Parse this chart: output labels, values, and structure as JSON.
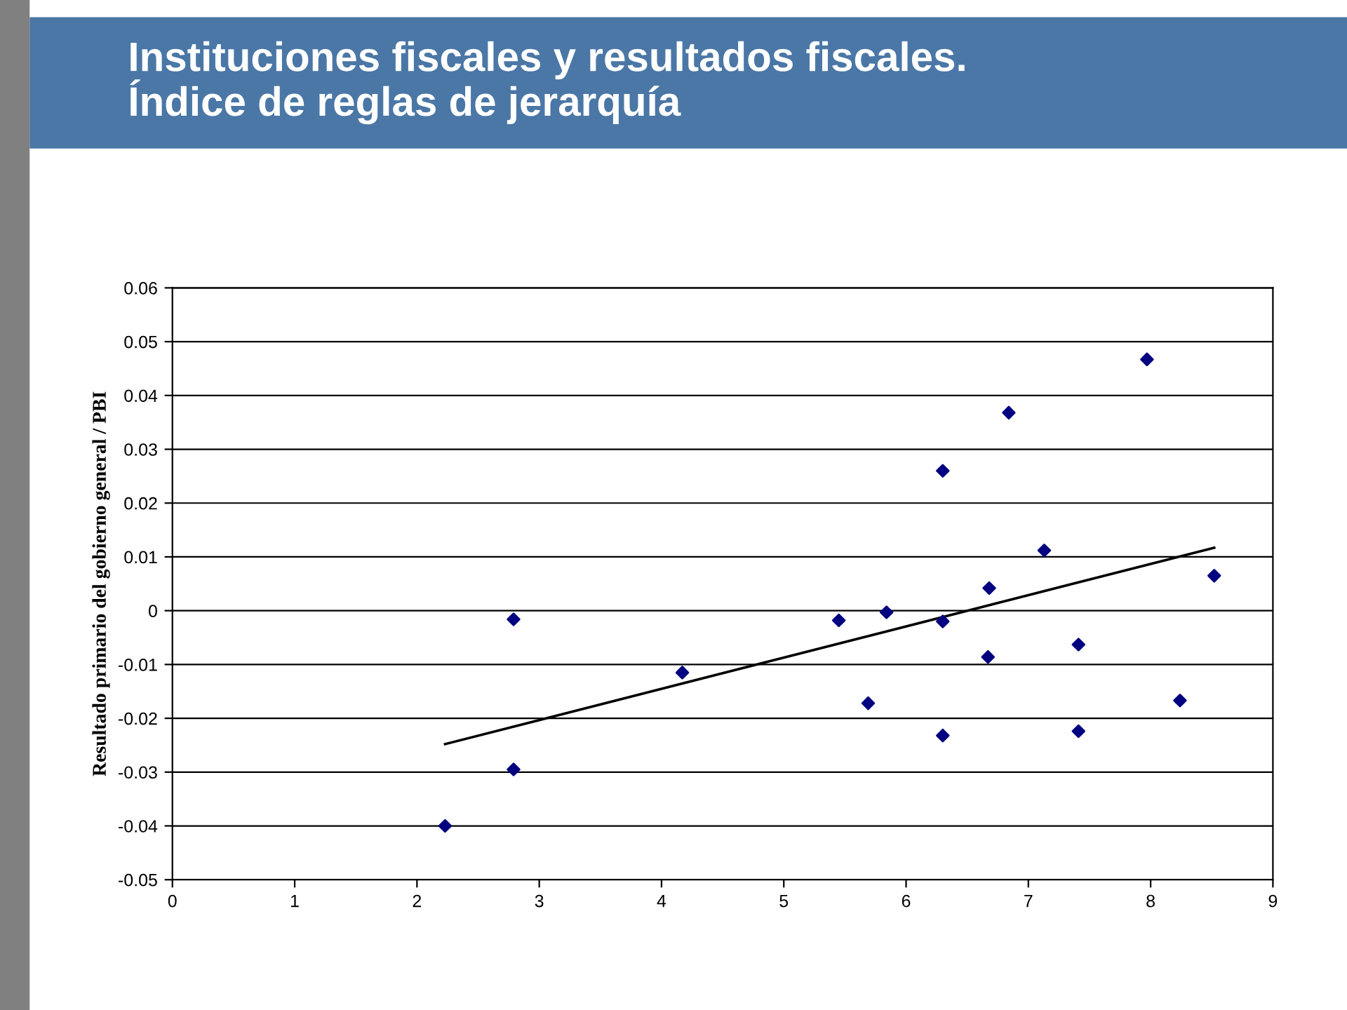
{
  "chart_data": {
    "type": "scatter",
    "title": "Instituciones fiscales y resultados fiscales.\nÍndice de reglas de jerarquía",
    "ylabel": "Resultado primario del gobierno general / PBI",
    "xlim": [
      0,
      9
    ],
    "xticks": [
      0,
      1,
      2,
      3,
      4,
      5,
      6,
      7,
      8,
      9
    ],
    "ylim": [
      -0.05,
      0.06
    ],
    "yticks": [
      -0.05,
      -0.04,
      -0.03,
      -0.02,
      -0.01,
      0,
      0.01,
      0.02,
      0.03,
      0.04,
      0.05,
      0.06
    ],
    "grid": "y",
    "marker": "diamond",
    "series": [
      {
        "color": "#000080",
        "x": [
          2.23,
          2.79,
          2.79,
          4.17,
          5.45,
          5.69,
          5.84,
          6.3,
          6.3,
          6.3,
          6.68,
          6.67,
          6.84,
          7.13,
          7.41,
          7.41,
          7.97,
          8.24,
          8.52
        ],
        "values": [
          -0.04,
          -0.0016,
          -0.0295,
          -0.0115,
          -0.0018,
          -0.0172,
          -0.0003,
          0.026,
          -0.002,
          -0.0232,
          0.0042,
          -0.0086,
          0.0368,
          0.0112,
          -0.0063,
          -0.0224,
          0.0467,
          -0.0167,
          0.0065
        ]
      },
      {
        "type": "line",
        "marker": "none",
        "color": "#000000",
        "x": [
          2.23,
          8.52
        ],
        "values": [
          -0.0248,
          0.0117
        ]
      }
    ]
  }
}
